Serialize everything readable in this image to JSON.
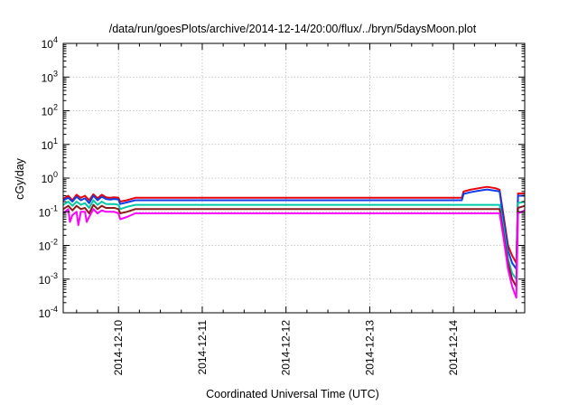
{
  "chart_data": {
    "type": "line",
    "title": "/data/run/goesPlots/archive/2014-12-14/20:00/flux/../bryn/5daysMoon.plot",
    "xlabel": "Coordinated Universal Time (UTC)",
    "ylabel": "cGy/day",
    "y_scale": "log",
    "ylim_exponents": [
      -4,
      4
    ],
    "y_tick_base": "10",
    "y_tick_exponents": [
      "-4",
      "-3",
      "-2",
      "-1",
      "0",
      "1",
      "2",
      "3",
      "4"
    ],
    "x_tick_labels": [
      "2014-12-10",
      "2014-12-11",
      "2014-12-12",
      "2014-12-13",
      "2014-12-14"
    ],
    "x_range_days": [
      -0.66,
      4.85
    ],
    "grid": true,
    "series": [
      {
        "color": "#e8000b",
        "points": [
          [
            -0.66,
            0.24
          ],
          [
            -0.6,
            0.3
          ],
          [
            -0.55,
            0.22
          ],
          [
            -0.5,
            0.32
          ],
          [
            -0.45,
            0.26
          ],
          [
            -0.4,
            0.3
          ],
          [
            -0.35,
            0.22
          ],
          [
            -0.3,
            0.33
          ],
          [
            -0.25,
            0.25
          ],
          [
            -0.2,
            0.32
          ],
          [
            -0.15,
            0.27
          ],
          [
            -0.1,
            0.26
          ],
          [
            -0.05,
            0.27
          ],
          [
            0,
            0.26
          ],
          [
            0.02,
            0.2
          ],
          [
            0.1,
            0.22
          ],
          [
            0.2,
            0.26
          ],
          [
            4.1,
            0.26
          ],
          [
            4.12,
            0.4
          ],
          [
            4.2,
            0.45
          ],
          [
            4.3,
            0.5
          ],
          [
            4.4,
            0.55
          ],
          [
            4.5,
            0.5
          ],
          [
            4.55,
            0.45
          ],
          [
            4.6,
            0.07
          ],
          [
            4.65,
            0.01
          ],
          [
            4.7,
            0.005
          ],
          [
            4.75,
            0.003
          ],
          [
            4.77,
            0.35
          ],
          [
            4.85,
            0.35
          ]
        ]
      },
      {
        "color": "#0b3fe8",
        "points": [
          [
            -0.66,
            0.22
          ],
          [
            -0.6,
            0.26
          ],
          [
            -0.55,
            0.2
          ],
          [
            -0.5,
            0.28
          ],
          [
            -0.45,
            0.22
          ],
          [
            -0.4,
            0.25
          ],
          [
            -0.35,
            0.18
          ],
          [
            -0.3,
            0.3
          ],
          [
            -0.25,
            0.22
          ],
          [
            -0.2,
            0.28
          ],
          [
            -0.15,
            0.24
          ],
          [
            -0.1,
            0.23
          ],
          [
            -0.05,
            0.24
          ],
          [
            0,
            0.23
          ],
          [
            0.02,
            0.17
          ],
          [
            0.1,
            0.19
          ],
          [
            0.2,
            0.22
          ],
          [
            4.1,
            0.22
          ],
          [
            4.12,
            0.34
          ],
          [
            4.2,
            0.38
          ],
          [
            4.3,
            0.42
          ],
          [
            4.4,
            0.46
          ],
          [
            4.5,
            0.42
          ],
          [
            4.55,
            0.4
          ],
          [
            4.6,
            0.05
          ],
          [
            4.65,
            0.007
          ],
          [
            4.7,
            0.003
          ],
          [
            4.75,
            0.002
          ],
          [
            4.77,
            0.3
          ],
          [
            4.85,
            0.3
          ]
        ]
      },
      {
        "color": "#00c9a7",
        "points": [
          [
            -0.66,
            0.16
          ],
          [
            -0.6,
            0.2
          ],
          [
            -0.55,
            0.15
          ],
          [
            -0.5,
            0.2
          ],
          [
            -0.45,
            0.16
          ],
          [
            -0.4,
            0.18
          ],
          [
            -0.35,
            0.13
          ],
          [
            -0.3,
            0.22
          ],
          [
            -0.25,
            0.16
          ],
          [
            -0.2,
            0.2
          ],
          [
            -0.15,
            0.17
          ],
          [
            -0.1,
            0.17
          ],
          [
            -0.05,
            0.17
          ],
          [
            0,
            0.16
          ],
          [
            0.02,
            0.12
          ],
          [
            0.1,
            0.14
          ],
          [
            0.2,
            0.16
          ],
          [
            4.1,
            0.16
          ],
          [
            4.55,
            0.16
          ],
          [
            4.6,
            0.03
          ],
          [
            4.65,
            0.004
          ],
          [
            4.7,
            0.0015
          ],
          [
            4.75,
            0.001
          ],
          [
            4.77,
            0.18
          ],
          [
            4.85,
            0.2
          ]
        ]
      },
      {
        "color": "#8b1a1a",
        "points": [
          [
            -0.66,
            0.12
          ],
          [
            -0.6,
            0.15
          ],
          [
            -0.55,
            0.11
          ],
          [
            -0.5,
            0.15
          ],
          [
            -0.45,
            0.12
          ],
          [
            -0.4,
            0.13
          ],
          [
            -0.35,
            0.09
          ],
          [
            -0.3,
            0.16
          ],
          [
            -0.25,
            0.12
          ],
          [
            -0.2,
            0.15
          ],
          [
            -0.15,
            0.13
          ],
          [
            -0.1,
            0.13
          ],
          [
            -0.05,
            0.13
          ],
          [
            0,
            0.12
          ],
          [
            0.02,
            0.09
          ],
          [
            0.1,
            0.1
          ],
          [
            0.2,
            0.12
          ],
          [
            4.1,
            0.12
          ],
          [
            4.55,
            0.12
          ],
          [
            4.6,
            0.02
          ],
          [
            4.65,
            0.003
          ],
          [
            4.7,
            0.001
          ],
          [
            4.75,
            0.0006
          ],
          [
            4.77,
            0.13
          ],
          [
            4.85,
            0.15
          ]
        ]
      },
      {
        "color": "#ff00ff",
        "points": [
          [
            -0.66,
            0.09
          ],
          [
            -0.6,
            0.12
          ],
          [
            -0.58,
            0.05
          ],
          [
            -0.55,
            0.08
          ],
          [
            -0.5,
            0.1
          ],
          [
            -0.48,
            0.04
          ],
          [
            -0.45,
            0.1
          ],
          [
            -0.4,
            0.1
          ],
          [
            -0.38,
            0.05
          ],
          [
            -0.35,
            0.07
          ],
          [
            -0.3,
            0.12
          ],
          [
            -0.25,
            0.09
          ],
          [
            -0.2,
            0.11
          ],
          [
            -0.15,
            0.1
          ],
          [
            -0.1,
            0.1
          ],
          [
            -0.05,
            0.1
          ],
          [
            0,
            0.09
          ],
          [
            0.02,
            0.06
          ],
          [
            0.1,
            0.07
          ],
          [
            0.2,
            0.09
          ],
          [
            4.1,
            0.09
          ],
          [
            4.55,
            0.09
          ],
          [
            4.6,
            0.015
          ],
          [
            4.65,
            0.002
          ],
          [
            4.7,
            0.0006
          ],
          [
            4.75,
            0.00028
          ],
          [
            4.77,
            0.09
          ],
          [
            4.85,
            0.11
          ]
        ]
      }
    ]
  }
}
